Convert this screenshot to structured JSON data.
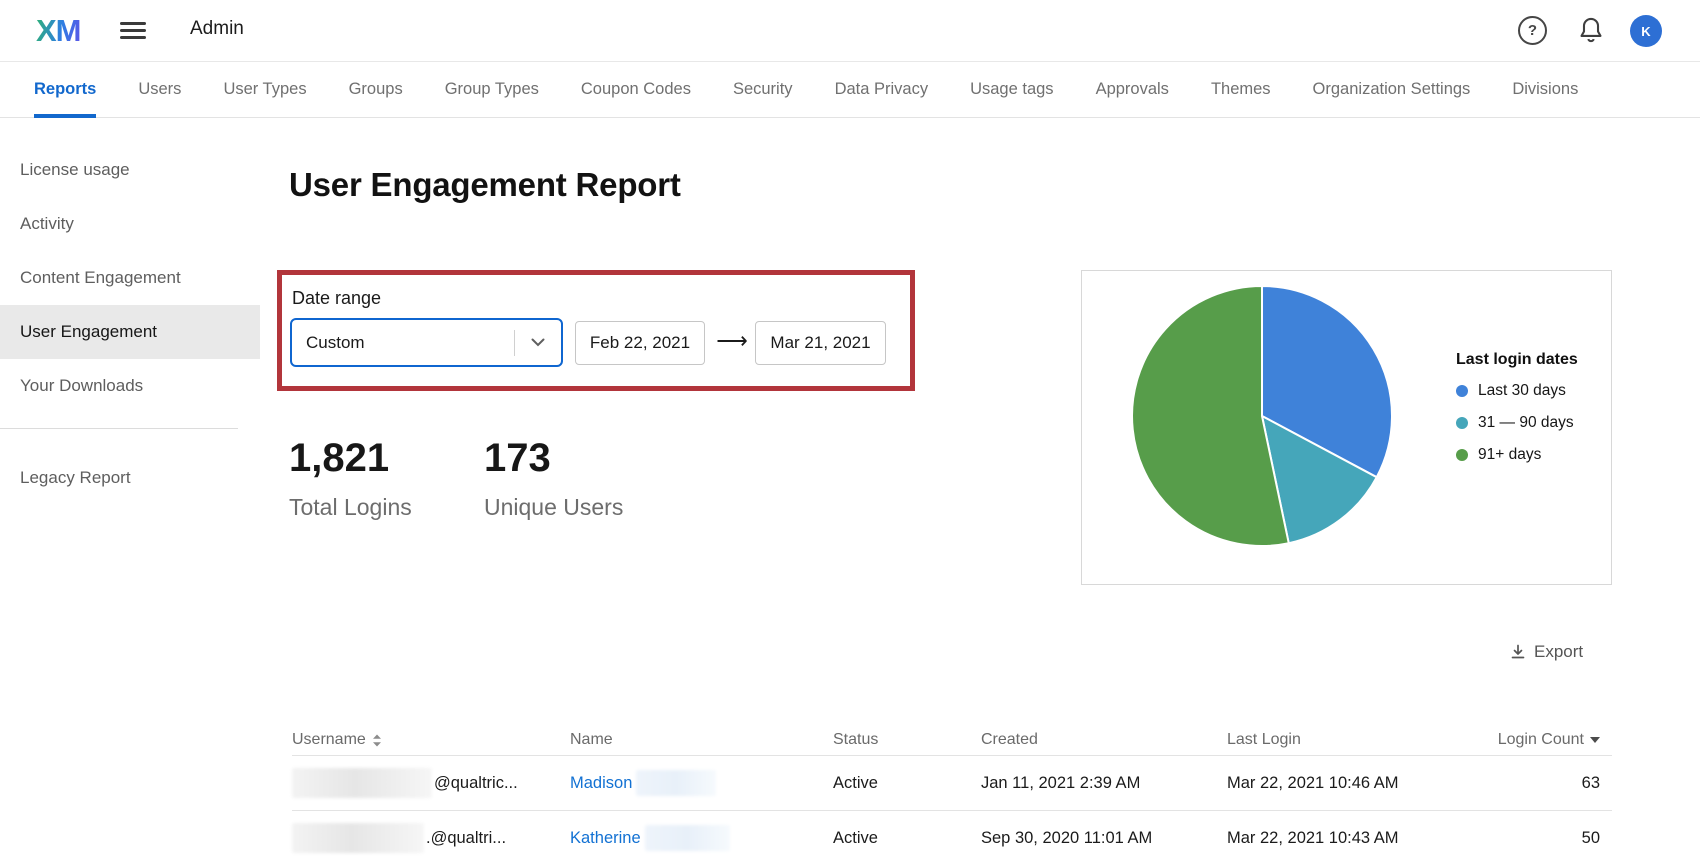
{
  "header": {
    "logo_text": "XM",
    "app_title": "Admin",
    "avatar_initial": "K"
  },
  "tabs": [
    {
      "label": "Reports",
      "active": true
    },
    {
      "label": "Users"
    },
    {
      "label": "User Types"
    },
    {
      "label": "Groups"
    },
    {
      "label": "Group Types"
    },
    {
      "label": "Coupon Codes"
    },
    {
      "label": "Security"
    },
    {
      "label": "Data Privacy"
    },
    {
      "label": "Usage tags"
    },
    {
      "label": "Approvals"
    },
    {
      "label": "Themes"
    },
    {
      "label": "Organization Settings"
    },
    {
      "label": "Divisions"
    }
  ],
  "sidebar": {
    "items": [
      {
        "label": "License usage",
        "selected": false
      },
      {
        "label": "Activity",
        "selected": false
      },
      {
        "label": "Content Engagement",
        "selected": false
      },
      {
        "label": "User Engagement",
        "selected": true
      },
      {
        "label": "Your Downloads",
        "selected": false
      }
    ],
    "footer_item": {
      "label": "Legacy Report"
    }
  },
  "main": {
    "page_title": "User Engagement Report",
    "date_range": {
      "label": "Date range",
      "preset_selected": "Custom",
      "start_date": "Feb 22, 2021",
      "end_date": "Mar 21, 2021",
      "arrow_glyph": "⟶"
    },
    "stats": [
      {
        "value": "1,821",
        "label": "Total Logins"
      },
      {
        "value": "173",
        "label": "Unique Users"
      }
    ],
    "export_label": "Export"
  },
  "chart_data": {
    "type": "pie",
    "title": "Last login dates",
    "legend_position": "right",
    "start_angle_deg": 0,
    "direction": "clockwise",
    "slices": [
      {
        "label": "Last 30 days",
        "percent": 32.8,
        "color": "#3f82d9"
      },
      {
        "label": "31 — 90 days",
        "percent": 13.9,
        "color": "#45a6ba"
      },
      {
        "label": "91+ days",
        "percent": 53.3,
        "color": "#579d4a"
      }
    ]
  },
  "table": {
    "columns": [
      {
        "label": "Username",
        "sortable": "both"
      },
      {
        "label": "Name"
      },
      {
        "label": "Status"
      },
      {
        "label": "Created"
      },
      {
        "label": "Last Login"
      },
      {
        "label": "Login Count",
        "sorted": "desc",
        "align": "right"
      }
    ],
    "rows": [
      {
        "username_redacted": true,
        "username_suffix": "@qualtric...",
        "first_name": "Madison",
        "last_name_redacted": true,
        "status": "Active",
        "created": "Jan 11, 2021 2:39 AM",
        "last_login": "Mar 22, 2021 10:46 AM",
        "login_count": "63"
      },
      {
        "username_redacted": true,
        "username_suffix": ".@qualtri...",
        "first_name": "Katherine",
        "last_name_redacted": true,
        "status": "Active",
        "created": "Sep 30, 2020 11:01 AM",
        "last_login": "Mar 22, 2021 10:43 AM",
        "login_count": "50"
      }
    ]
  },
  "colors": {
    "accent_blue": "#1268cd",
    "annotation_red": "#b2353b",
    "avatar_blue": "#2d6fd4",
    "link_blue": "#1271d3",
    "pie_blue": "#3f82d9",
    "pie_teal": "#45a6ba",
    "pie_green": "#579d4a"
  }
}
